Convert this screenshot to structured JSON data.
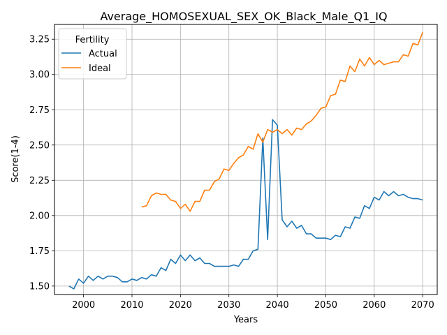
{
  "chart_data": {
    "type": "line",
    "title": "Average_HOMOSEXUAL_SEX_OK_Black_Male_Q1_IQ",
    "xlabel": "Years",
    "ylabel": "Score(1-4)",
    "xlim": [
      1994,
      2073
    ],
    "ylim": [
      1.44,
      3.355
    ],
    "xticks": [
      2000,
      2010,
      2020,
      2030,
      2040,
      2050,
      2060,
      2070
    ],
    "yticks": [
      1.5,
      1.75,
      2.0,
      2.25,
      2.5,
      2.75,
      3.0,
      3.25
    ],
    "ytick_labels": [
      "1.50",
      "1.75",
      "2.00",
      "2.25",
      "2.50",
      "2.75",
      "3.00",
      "3.25"
    ],
    "grid": true,
    "legend": {
      "title": "Fertility",
      "position": "top-left"
    },
    "series": [
      {
        "name": "Actual",
        "color": "#1f77b4",
        "x": [
          1997,
          1998,
          1999,
          2000,
          2001,
          2002,
          2003,
          2004,
          2005,
          2006,
          2007,
          2008,
          2009,
          2010,
          2011,
          2012,
          2013,
          2014,
          2015,
          2016,
          2017,
          2018,
          2019,
          2020,
          2021,
          2022,
          2023,
          2024,
          2025,
          2026,
          2027,
          2028,
          2029,
          2030,
          2031,
          2032,
          2033,
          2034,
          2035,
          2036,
          2037,
          2038,
          2039,
          2040,
          2041,
          2042,
          2043,
          2044,
          2045,
          2046,
          2047,
          2048,
          2049,
          2050,
          2051,
          2052,
          2053,
          2054,
          2055,
          2056,
          2057,
          2058,
          2059,
          2060,
          2061,
          2062,
          2063,
          2064,
          2065,
          2066,
          2067,
          2068,
          2069,
          2070
        ],
        "values": [
          1.5,
          1.48,
          1.55,
          1.52,
          1.57,
          1.54,
          1.57,
          1.55,
          1.57,
          1.57,
          1.56,
          1.53,
          1.53,
          1.55,
          1.54,
          1.56,
          1.55,
          1.58,
          1.57,
          1.63,
          1.61,
          1.69,
          1.66,
          1.72,
          1.68,
          1.72,
          1.68,
          1.7,
          1.66,
          1.66,
          1.64,
          1.64,
          1.64,
          1.64,
          1.65,
          1.64,
          1.69,
          1.69,
          1.75,
          1.76,
          2.55,
          1.83,
          2.68,
          2.64,
          1.97,
          1.92,
          1.96,
          1.91,
          1.93,
          1.87,
          1.87,
          1.84,
          1.84,
          1.84,
          1.83,
          1.86,
          1.85,
          1.92,
          1.91,
          1.99,
          1.98,
          2.07,
          2.05,
          2.13,
          2.11,
          2.17,
          2.14,
          2.17,
          2.14,
          2.15,
          2.13,
          2.12,
          2.12,
          2.11
        ]
      },
      {
        "name": "Ideal",
        "color": "#ff7f0e",
        "x": [
          2012,
          2013,
          2014,
          2015,
          2016,
          2017,
          2018,
          2019,
          2020,
          2021,
          2022,
          2023,
          2024,
          2025,
          2026,
          2027,
          2028,
          2029,
          2030,
          2031,
          2032,
          2033,
          2034,
          2035,
          2036,
          2037,
          2038,
          2039,
          2040,
          2041,
          2042,
          2043,
          2044,
          2045,
          2046,
          2047,
          2048,
          2049,
          2050,
          2051,
          2052,
          2053,
          2054,
          2055,
          2056,
          2057,
          2058,
          2059,
          2060,
          2061,
          2062,
          2063,
          2064,
          2065,
          2066,
          2067,
          2068,
          2069,
          2070
        ],
        "values": [
          2.06,
          2.07,
          2.14,
          2.16,
          2.15,
          2.15,
          2.11,
          2.1,
          2.05,
          2.08,
          2.03,
          2.1,
          2.1,
          2.18,
          2.18,
          2.24,
          2.26,
          2.33,
          2.32,
          2.37,
          2.41,
          2.43,
          2.49,
          2.47,
          2.58,
          2.52,
          2.61,
          2.59,
          2.61,
          2.58,
          2.61,
          2.57,
          2.62,
          2.61,
          2.65,
          2.67,
          2.71,
          2.76,
          2.77,
          2.85,
          2.86,
          2.96,
          2.95,
          3.06,
          3.02,
          3.11,
          3.06,
          3.12,
          3.07,
          3.1,
          3.07,
          3.08,
          3.09,
          3.09,
          3.14,
          3.13,
          3.22,
          3.21,
          3.3
        ]
      }
    ]
  }
}
